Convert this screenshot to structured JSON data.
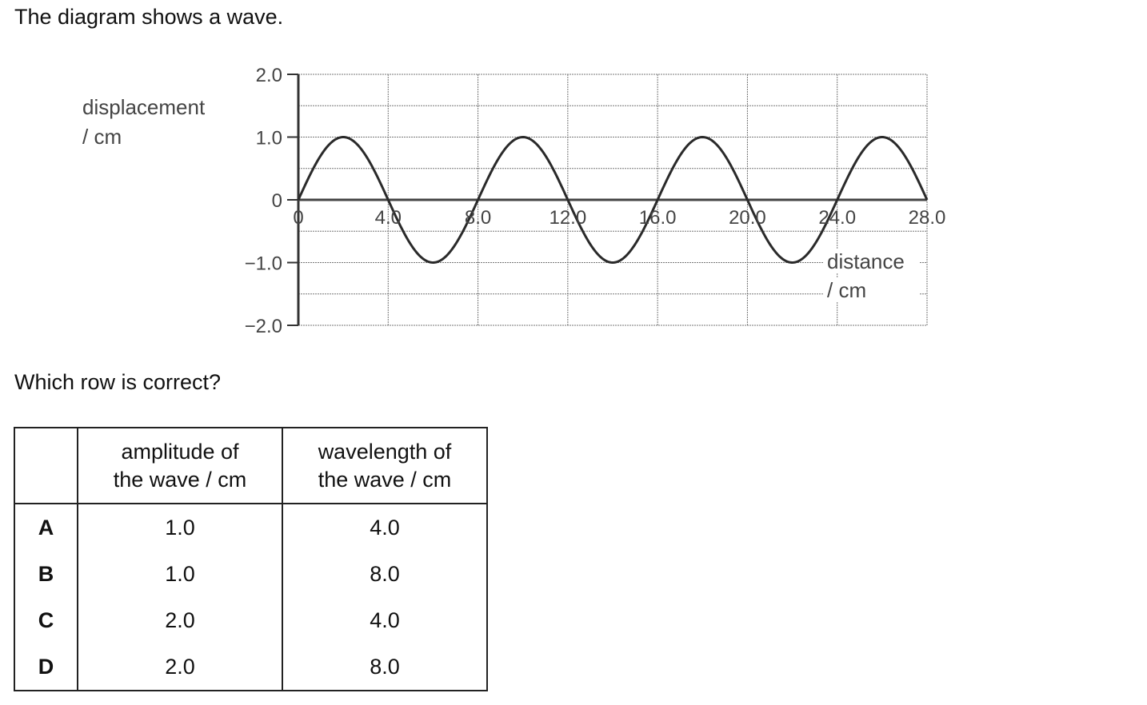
{
  "intro": "The diagram shows a wave.",
  "question": "Which row is correct?",
  "chart_data": {
    "type": "line",
    "title": "",
    "ylabel_lines": [
      "displacement",
      "/ cm"
    ],
    "xlabel_lines": [
      "distance",
      "/ cm"
    ],
    "ylim": [
      -2.0,
      2.0
    ],
    "xlim": [
      0,
      28.0
    ],
    "y_ticks": [
      "2.0",
      "1.0",
      "0",
      "−1.0",
      "−2.0"
    ],
    "y_tick_values": [
      2.0,
      1.0,
      0,
      -1.0,
      -2.0
    ],
    "x_ticks": [
      "0",
      "4.0",
      "8.0",
      "12.0",
      "16.0",
      "20.0",
      "24.0",
      "28.0"
    ],
    "x_tick_values": [
      0,
      4.0,
      8.0,
      12.0,
      16.0,
      20.0,
      24.0,
      28.0
    ],
    "grid": true,
    "series": [
      {
        "x": [
          0,
          1,
          2,
          3,
          4,
          5,
          6,
          7,
          8,
          9,
          10,
          11,
          12,
          13,
          14,
          15,
          16,
          17,
          18,
          19,
          20,
          21,
          22,
          23,
          24,
          25,
          26,
          27,
          28
        ],
        "y": [
          0,
          0.71,
          1.0,
          0.71,
          0,
          -0.71,
          -1.0,
          -0.71,
          0,
          0.71,
          1.0,
          0.71,
          0,
          -0.71,
          -1.0,
          -0.71,
          0,
          0.71,
          1.0,
          0.71,
          0,
          -0.71,
          -1.0,
          -0.71,
          0,
          0.71,
          1.0,
          0.71,
          0
        ]
      }
    ]
  },
  "table": {
    "headers": [
      "",
      [
        "amplitude of",
        "the wave / cm"
      ],
      [
        "wavelength of",
        "the wave / cm"
      ]
    ],
    "rows": [
      {
        "label": "A",
        "amplitude": "1.0",
        "wavelength": "4.0"
      },
      {
        "label": "B",
        "amplitude": "1.0",
        "wavelength": "8.0"
      },
      {
        "label": "C",
        "amplitude": "2.0",
        "wavelength": "4.0"
      },
      {
        "label": "D",
        "amplitude": "2.0",
        "wavelength": "8.0"
      }
    ]
  }
}
